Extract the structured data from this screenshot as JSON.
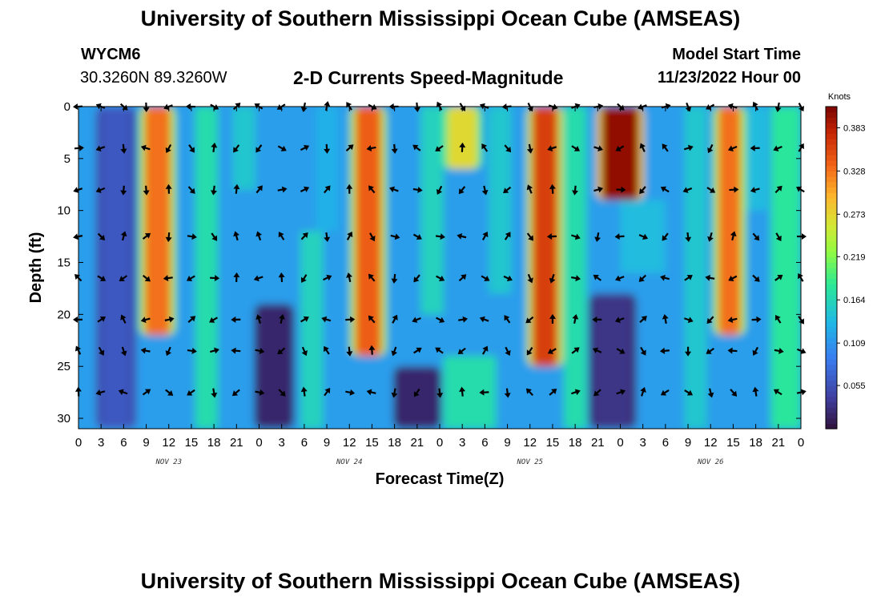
{
  "header": {
    "title": "University of Southern Mississippi Ocean Cube (AMSEAS)",
    "station_id": "WYCM6",
    "coordinates": "30.3260N  89.3260W",
    "plot_title": "2-D Currents Speed-Magnitude",
    "model_start_label": "Model Start Time",
    "model_start_value": "11/23/2022 Hour 00"
  },
  "footer": {
    "title": "University of Southern Mississippi Ocean Cube (AMSEAS)"
  },
  "chart_data": {
    "type": "heatmap",
    "title": "2-D Currents Speed-Magnitude",
    "xlabel": "Forecast Time(Z)",
    "ylabel": "Depth (ft)",
    "x_tick_labels": [
      "0",
      "3",
      "6",
      "9",
      "12",
      "15",
      "18",
      "21",
      "0",
      "3",
      "6",
      "9",
      "12",
      "15",
      "18",
      "21",
      "0",
      "3",
      "6",
      "9",
      "12",
      "15",
      "18",
      "21",
      "0",
      "3",
      "6",
      "9",
      "12",
      "15",
      "18",
      "21",
      "0"
    ],
    "x_range_hours": [
      0,
      96
    ],
    "date_labels": [
      {
        "label": "NOV 23",
        "hour": 12
      },
      {
        "label": "NOV 24",
        "hour": 36
      },
      {
        "label": "NOV 25",
        "hour": 60
      },
      {
        "label": "NOV 26",
        "hour": 84
      }
    ],
    "y_ticks": [
      0,
      5,
      10,
      15,
      20,
      25,
      30
    ],
    "y_range": [
      0,
      31
    ],
    "colorbar": {
      "label": "Knots",
      "ticks": [
        0.055,
        0.109,
        0.164,
        0.219,
        0.273,
        0.328,
        0.383
      ],
      "range": [
        0.0,
        0.41
      ]
    },
    "vector_depths_ft": [
      0,
      4,
      8,
      12.5,
      16.5,
      20.5,
      23.5,
      27.5
    ],
    "vector_times_hours": [
      0,
      3,
      6,
      9,
      12,
      15,
      18,
      21,
      24,
      27,
      30,
      33,
      36,
      39,
      42,
      45,
      48,
      51,
      54,
      57,
      60,
      63,
      66,
      69,
      72,
      75,
      78,
      81,
      84,
      87,
      90,
      93,
      96
    ],
    "speed_features_knots": [
      {
        "hour": 10.5,
        "width_h": 3.5,
        "depth_top": 0,
        "depth_bottom": 22,
        "speed": 0.33
      },
      {
        "hour": 38.5,
        "width_h": 3.5,
        "depth_top": 0,
        "depth_bottom": 24,
        "speed": 0.34
      },
      {
        "hour": 51,
        "width_h": 4,
        "depth_top": 0,
        "depth_bottom": 6,
        "speed": 0.27
      },
      {
        "hour": 62,
        "width_h": 3.5,
        "depth_top": 0,
        "depth_bottom": 25,
        "speed": 0.36
      },
      {
        "hour": 72,
        "width_h": 5,
        "depth_top": 0,
        "depth_bottom": 9,
        "speed": 0.4
      },
      {
        "hour": 86.5,
        "width_h": 3,
        "depth_top": 0,
        "depth_bottom": 22,
        "speed": 0.33
      },
      {
        "hour": 5,
        "width_h": 4,
        "depth_top": 0,
        "depth_bottom": 31,
        "speed": 0.06
      },
      {
        "hour": 26,
        "width_h": 4,
        "depth_top": 19,
        "depth_bottom": 31,
        "speed": 0.02
      },
      {
        "hour": 45,
        "width_h": 5,
        "depth_top": 25,
        "depth_bottom": 31,
        "speed": 0.02
      },
      {
        "hour": 71,
        "width_h": 5,
        "depth_top": 18,
        "depth_bottom": 31,
        "speed": 0.03
      }
    ]
  }
}
